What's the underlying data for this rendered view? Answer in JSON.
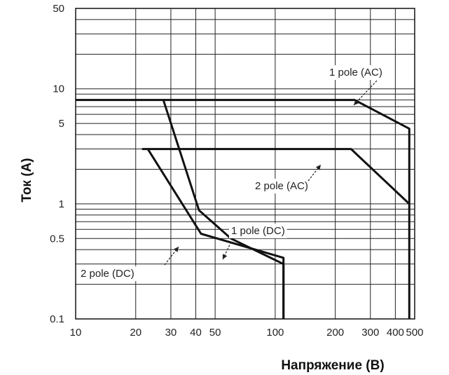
{
  "chart_data": {
    "type": "line",
    "xlabel": "Напряжение (В)",
    "ylabel": "Ток (А)",
    "x_scale": "log",
    "y_scale": "log",
    "xlim": [
      10,
      500
    ],
    "ylim": [
      0.1,
      50
    ],
    "grid": true,
    "x_ticks": [
      {
        "value": 10,
        "label": "10"
      },
      {
        "value": 20,
        "label": "20"
      },
      {
        "value": 30,
        "label": "30"
      },
      {
        "value": 40,
        "label": "40"
      },
      {
        "value": 50,
        "label": "50"
      },
      {
        "value": 100,
        "label": "100"
      },
      {
        "value": 200,
        "label": "200"
      },
      {
        "value": 300,
        "label": "300"
      },
      {
        "value": 400,
        "label": "400"
      },
      {
        "value": 500,
        "label": "500"
      }
    ],
    "y_ticks": [
      {
        "value": 50,
        "label": "50"
      },
      {
        "value": 10,
        "label": "10"
      },
      {
        "value": 5,
        "label": "5"
      },
      {
        "value": 1,
        "label": "1"
      },
      {
        "value": 0.5,
        "label": "0.5"
      },
      {
        "value": 0.1,
        "label": "0.1"
      }
    ],
    "series": [
      {
        "name": "1 pole (AC)",
        "x": [
          10,
          250,
          470,
          470
        ],
        "y": [
          8,
          8,
          4.5,
          0.1
        ]
      },
      {
        "name": "2 pole (AC)",
        "x": [
          21.5,
          240,
          470
        ],
        "y": [
          3,
          3,
          1
        ]
      },
      {
        "name": "1 pole (DC)",
        "x": [
          27.5,
          41.5,
          60,
          110,
          110
        ],
        "y": [
          8,
          0.88,
          0.5,
          0.3,
          0.1
        ]
      },
      {
        "name": "2 pole (DC)",
        "x": [
          23,
          42.5,
          110,
          110
        ],
        "y": [
          3,
          0.55,
          0.34,
          0.1
        ]
      }
    ]
  }
}
